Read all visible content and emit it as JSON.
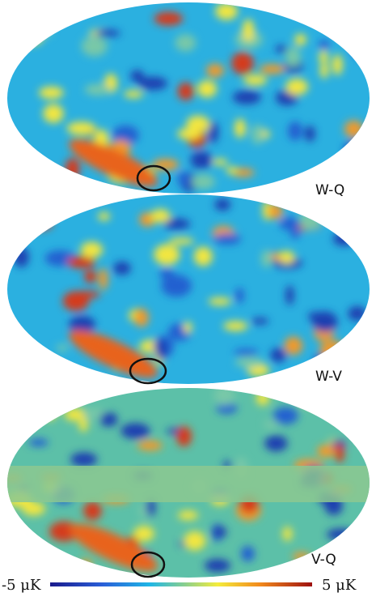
{
  "panels": [
    {
      "label": "W-Q"
    },
    {
      "label": "W-V"
    },
    {
      "label": "V-Q"
    }
  ],
  "colorbar": {
    "min_label": "-5 μK",
    "max_label": "5 μK"
  }
}
